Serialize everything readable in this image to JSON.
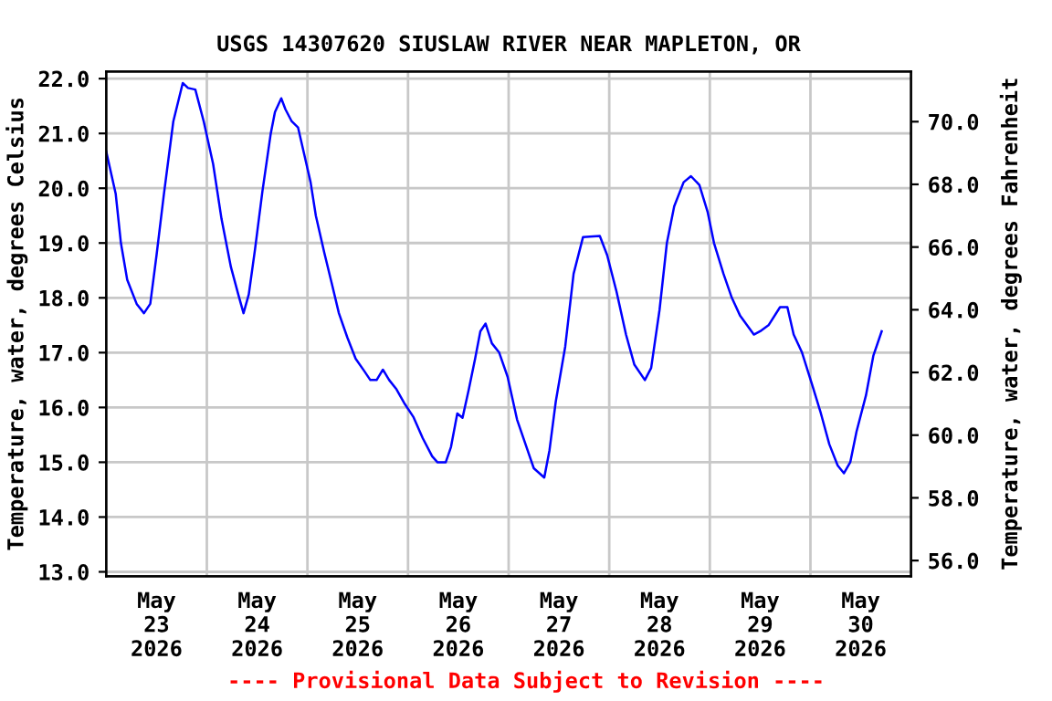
{
  "chart_data": {
    "type": "line",
    "title": "USGS 14307620 SIUSLAW RIVER NEAR MAPLETON, OR",
    "ylabel": "Temperature, water, degrees Celsius",
    "y2label": "Temperature, water, degrees Fahrenheit",
    "annotations": [
      "---- Provisional Data Subject to Revision ----"
    ],
    "grid": true,
    "legend": false,
    "marker": "none",
    "line_style": "solid",
    "xlim": [
      "2026-05-23T00:00",
      "2026-05-31T00:00"
    ],
    "xticks": [
      {
        "value": "2026-05-23T12:00",
        "label": "May\n23\n2026"
      },
      {
        "value": "2026-05-24T12:00",
        "label": "May\n24\n2026"
      },
      {
        "value": "2026-05-25T12:00",
        "label": "May\n25\n2026"
      },
      {
        "value": "2026-05-26T12:00",
        "label": "May\n26\n2026"
      },
      {
        "value": "2026-05-27T12:00",
        "label": "May\n27\n2026"
      },
      {
        "value": "2026-05-28T12:00",
        "label": "May\n28\n2026"
      },
      {
        "value": "2026-05-29T12:00",
        "label": "May\n29\n2026"
      },
      {
        "value": "2026-05-30T12:00",
        "label": "May\n30\n2026"
      },
      {
        "value": "2026-05-24T00:00",
        "label": null
      },
      {
        "value": "2026-05-25T00:00",
        "label": null
      },
      {
        "value": "2026-05-26T00:00",
        "label": null
      },
      {
        "value": "2026-05-27T00:00",
        "label": null
      },
      {
        "value": "2026-05-28T00:00",
        "label": null
      },
      {
        "value": "2026-05-29T00:00",
        "label": null
      },
      {
        "value": "2026-05-30T00:00",
        "label": null
      }
    ],
    "ylim": [
      12.92,
      22.13
    ],
    "yticks": [
      {
        "value": 13,
        "label": "13.0"
      },
      {
        "value": 14,
        "label": "14.0"
      },
      {
        "value": 15,
        "label": "15.0"
      },
      {
        "value": 16,
        "label": "16.0"
      },
      {
        "value": 17,
        "label": "17.0"
      },
      {
        "value": 18,
        "label": "18.0"
      },
      {
        "value": 19,
        "label": "19.0"
      },
      {
        "value": 20,
        "label": "20.0"
      },
      {
        "value": 21,
        "label": "21.0"
      },
      {
        "value": 22,
        "label": "22.0"
      }
    ],
    "y2lim": [
      55.5,
      71.6
    ],
    "y2ticks": [
      {
        "value": 56,
        "label": "56.0"
      },
      {
        "value": 58,
        "label": "58.0"
      },
      {
        "value": 60,
        "label": "60.0"
      },
      {
        "value": 62,
        "label": "62.0"
      },
      {
        "value": 64,
        "label": "64.0"
      },
      {
        "value": 66,
        "label": "66.0"
      },
      {
        "value": 68,
        "label": "68.0"
      },
      {
        "value": 70,
        "label": "70.0"
      }
    ],
    "series": [
      {
        "color": "#0000ff",
        "x": [
          "2026-05-23T00:00",
          "2026-05-23T02:15",
          "2026-05-23T03:30",
          "2026-05-23T05:00",
          "2026-05-23T07:15",
          "2026-05-23T09:00",
          "2026-05-23T10:30",
          "2026-05-23T12:00",
          "2026-05-23T13:45",
          "2026-05-23T16:00",
          "2026-05-23T18:15",
          "2026-05-23T19:30",
          "2026-05-23T21:15",
          "2026-05-23T23:15",
          "2026-05-24T01:30",
          "2026-05-24T03:30",
          "2026-05-24T05:45",
          "2026-05-24T07:30",
          "2026-05-24T08:45",
          "2026-05-24T10:00",
          "2026-05-24T11:30",
          "2026-05-24T13:15",
          "2026-05-24T15:15",
          "2026-05-24T16:15",
          "2026-05-24T17:45",
          "2026-05-24T18:45",
          "2026-05-24T20:15",
          "2026-05-24T21:45",
          "2026-05-24T23:15",
          "2026-05-25T00:45",
          "2026-05-25T02:00",
          "2026-05-25T04:00",
          "2026-05-25T05:45",
          "2026-05-25T07:30",
          "2026-05-25T09:30",
          "2026-05-25T11:30",
          "2026-05-25T13:30",
          "2026-05-25T15:00",
          "2026-05-25T16:30",
          "2026-05-25T18:00",
          "2026-05-25T19:30",
          "2026-05-25T21:15",
          "2026-05-25T23:15",
          "2026-05-26T01:15",
          "2026-05-26T03:30",
          "2026-05-26T05:45",
          "2026-05-26T07:00",
          "2026-05-26T09:00",
          "2026-05-26T10:15",
          "2026-05-26T11:45",
          "2026-05-26T13:00",
          "2026-05-26T14:30",
          "2026-05-26T16:00",
          "2026-05-26T17:15",
          "2026-05-26T18:30",
          "2026-05-26T20:00",
          "2026-05-26T21:45",
          "2026-05-26T23:45",
          "2026-05-27T02:00",
          "2026-05-27T06:00",
          "2026-05-27T08:30",
          "2026-05-27T09:45",
          "2026-05-27T11:15",
          "2026-05-27T13:30",
          "2026-05-27T15:30",
          "2026-05-27T17:45",
          "2026-05-27T21:45",
          "2026-05-27T23:30",
          "2026-05-28T01:45",
          "2026-05-28T04:00",
          "2026-05-28T06:00",
          "2026-05-28T08:30",
          "2026-05-28T10:00",
          "2026-05-28T12:00",
          "2026-05-28T13:45",
          "2026-05-28T15:30",
          "2026-05-28T17:45",
          "2026-05-28T19:30",
          "2026-05-28T21:30",
          "2026-05-28T23:30",
          "2026-05-29T01:00",
          "2026-05-29T03:15",
          "2026-05-29T05:15",
          "2026-05-29T07:15",
          "2026-05-29T10:30",
          "2026-05-29T12:00",
          "2026-05-29T14:00",
          "2026-05-29T16:45",
          "2026-05-29T18:30",
          "2026-05-29T20:00",
          "2026-05-29T22:00",
          "2026-05-30T00:30",
          "2026-05-30T02:30",
          "2026-05-30T04:30",
          "2026-05-30T06:30",
          "2026-05-30T08:00",
          "2026-05-30T09:30",
          "2026-05-30T11:00",
          "2026-05-30T13:15",
          "2026-05-30T15:00",
          "2026-05-30T17:00"
        ],
        "values": [
          20.67,
          19.9,
          19.0,
          18.33,
          17.89,
          17.72,
          17.89,
          18.78,
          19.89,
          21.22,
          21.92,
          21.83,
          21.8,
          21.22,
          20.44,
          19.44,
          18.56,
          18.06,
          17.72,
          18.06,
          18.89,
          19.94,
          21.0,
          21.39,
          21.64,
          21.44,
          21.22,
          21.11,
          20.61,
          20.11,
          19.5,
          18.83,
          18.28,
          17.72,
          17.28,
          16.89,
          16.67,
          16.5,
          16.5,
          16.69,
          16.5,
          16.33,
          16.06,
          15.83,
          15.44,
          15.11,
          15.0,
          15.0,
          15.28,
          15.89,
          15.81,
          16.33,
          16.89,
          17.39,
          17.53,
          17.17,
          17.0,
          16.56,
          15.78,
          14.89,
          14.72,
          15.22,
          16.11,
          17.11,
          18.44,
          19.11,
          19.13,
          18.78,
          18.11,
          17.33,
          16.78,
          16.5,
          16.72,
          17.78,
          19.0,
          19.67,
          20.11,
          20.22,
          20.06,
          19.56,
          19.0,
          18.44,
          18.0,
          17.67,
          17.33,
          17.39,
          17.5,
          17.83,
          17.83,
          17.33,
          17.0,
          16.39,
          15.89,
          15.33,
          14.94,
          14.8,
          15.0,
          15.56,
          16.22,
          16.94,
          17.39
        ]
      }
    ]
  }
}
